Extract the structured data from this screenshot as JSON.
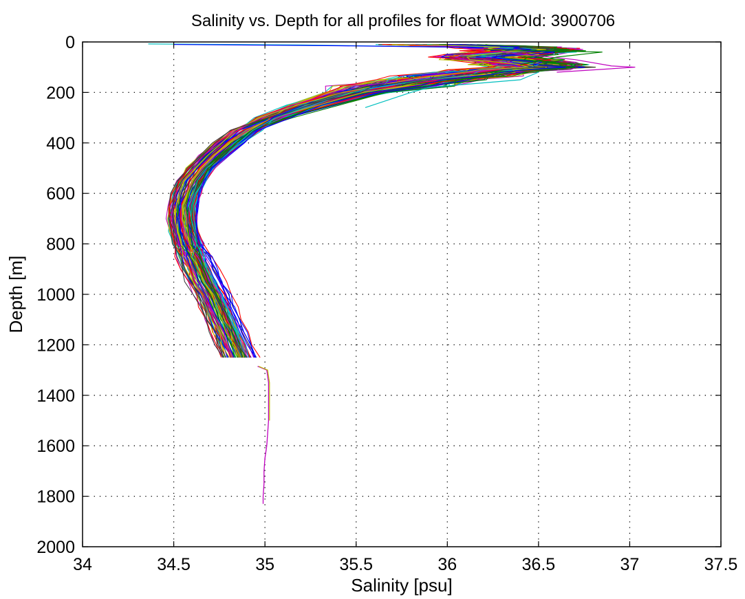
{
  "chart_data": {
    "type": "line",
    "title": "Salinity vs. Depth for all profiles for float WMOId: 3900706",
    "xlabel": "Salinity [psu]",
    "ylabel": "Depth [m]",
    "xlim": [
      34,
      37.5
    ],
    "ylim": [
      0,
      2000
    ],
    "y_reversed": true,
    "grid": true,
    "x_ticks": [
      34,
      34.5,
      35,
      35.5,
      36,
      36.5,
      37,
      37.5
    ],
    "x_tick_labels": [
      "34",
      "34.5",
      "35",
      "35.5",
      "36",
      "36.5",
      "37",
      "37.5"
    ],
    "y_ticks": [
      0,
      200,
      400,
      600,
      800,
      1000,
      1200,
      1400,
      1600,
      1800,
      2000
    ],
    "y_tick_labels": [
      "0",
      "200",
      "400",
      "600",
      "800",
      "1000",
      "1200",
      "1400",
      "1600",
      "1800",
      "2000"
    ],
    "colors": [
      "#0000ff",
      "#008000",
      "#ff0000",
      "#00bfbf",
      "#bf00bf",
      "#bfbf00",
      "#404040"
    ],
    "profile_count": 120,
    "profile_shape": {
      "depth": [
        10,
        20,
        30,
        40,
        60,
        80,
        100,
        120,
        150,
        200,
        250,
        300,
        350,
        400,
        450,
        500,
        550,
        600,
        650,
        700,
        750,
        800,
        850,
        900,
        950,
        1000,
        1050,
        1100,
        1150,
        1200,
        1250,
        1285
      ],
      "salinity": [
        35.9,
        36.3,
        36.45,
        36.4,
        36.2,
        36.4,
        36.5,
        36.2,
        35.9,
        35.5,
        35.25,
        35.05,
        34.9,
        34.8,
        34.72,
        34.65,
        34.6,
        34.57,
        34.55,
        34.55,
        34.56,
        34.58,
        34.61,
        34.64,
        34.67,
        34.71,
        34.74,
        34.77,
        34.8,
        34.83,
        34.86,
        34.89
      ]
    },
    "deep_profile": {
      "name": "",
      "depth": [
        1285,
        1300,
        1350,
        1400,
        1450,
        1500,
        1550,
        1600,
        1650,
        1700,
        1750,
        1800,
        1830
      ],
      "salinity": [
        34.96,
        35.01,
        35.02,
        35.02,
        35.02,
        35.02,
        35.015,
        35.01,
        35.0,
        34.995,
        34.995,
        34.99,
        34.99
      ]
    },
    "surface_outliers": [
      {
        "depth": [
          8,
          12,
          20
        ],
        "salinity": [
          34.36,
          35.2,
          36.0
        ]
      },
      {
        "depth": [
          10,
          15,
          22
        ],
        "salinity": [
          34.5,
          35.4,
          36.2
        ]
      }
    ],
    "warm_outliers": [
      {
        "depth": [
          40,
          70,
          95,
          100,
          120
        ],
        "salinity": [
          36.3,
          36.7,
          36.9,
          37.03,
          36.6
        ]
      },
      {
        "depth": [
          30,
          40,
          60,
          90
        ],
        "salinity": [
          36.2,
          36.85,
          36.6,
          36.4
        ]
      },
      {
        "depth": [
          120,
          150,
          180,
          200,
          260
        ],
        "salinity": [
          36.5,
          36.4,
          35.9,
          35.8,
          35.55
        ]
      }
    ]
  }
}
